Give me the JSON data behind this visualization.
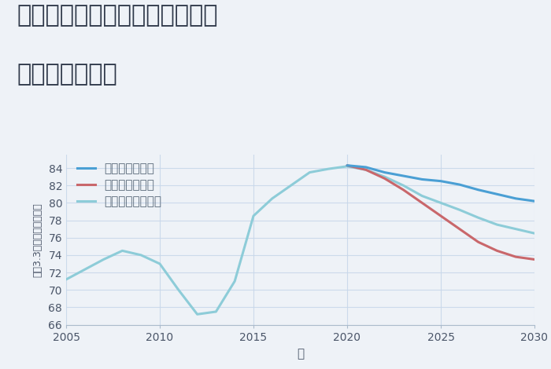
{
  "title_line1": "愛知県名古屋市昭和区永金町の",
  "title_line2": "土地の価格推移",
  "xlabel": "年",
  "ylabel": "坪（3.3㎡）単価（万円）",
  "background_color": "#eef2f7",
  "plot_background": "#eef2f7",
  "ylim": [
    66,
    85.5
  ],
  "yticks": [
    66,
    68,
    70,
    72,
    74,
    76,
    78,
    80,
    82,
    84
  ],
  "xlim": [
    2005,
    2030
  ],
  "xticks": [
    2005,
    2010,
    2015,
    2020,
    2025,
    2030
  ],
  "good_scenario": {
    "label": "グッドシナリオ",
    "color": "#4a9fd4",
    "x": [
      2020,
      2021,
      2022,
      2023,
      2024,
      2025,
      2026,
      2027,
      2028,
      2029,
      2030
    ],
    "y": [
      84.3,
      84.1,
      83.5,
      83.1,
      82.7,
      82.5,
      82.1,
      81.5,
      81.0,
      80.5,
      80.2
    ]
  },
  "bad_scenario": {
    "label": "バッドシナリオ",
    "color": "#c9676b",
    "x": [
      2020,
      2021,
      2022,
      2023,
      2024,
      2025,
      2026,
      2027,
      2028,
      2029,
      2030
    ],
    "y": [
      84.3,
      83.8,
      82.8,
      81.5,
      80.0,
      78.5,
      77.0,
      75.5,
      74.5,
      73.8,
      73.5
    ]
  },
  "normal_scenario": {
    "label": "ノーマルシナリオ",
    "color": "#8dccd8",
    "x": [
      2005,
      2007,
      2008,
      2009,
      2010,
      2011,
      2012,
      2013,
      2014,
      2015,
      2016,
      2017,
      2018,
      2019,
      2020,
      2021,
      2022,
      2023,
      2024,
      2025,
      2026,
      2027,
      2028,
      2029,
      2030
    ],
    "y": [
      71.2,
      73.5,
      74.5,
      74.0,
      73.0,
      70.0,
      67.2,
      67.5,
      71.0,
      78.5,
      80.5,
      82.0,
      83.5,
      83.9,
      84.2,
      83.8,
      83.0,
      82.0,
      80.8,
      80.0,
      79.2,
      78.3,
      77.5,
      77.0,
      76.5
    ]
  },
  "legend_fontsize": 11,
  "title_fontsize": 22,
  "axis_label_fontsize": 11,
  "line_width": 2.2
}
